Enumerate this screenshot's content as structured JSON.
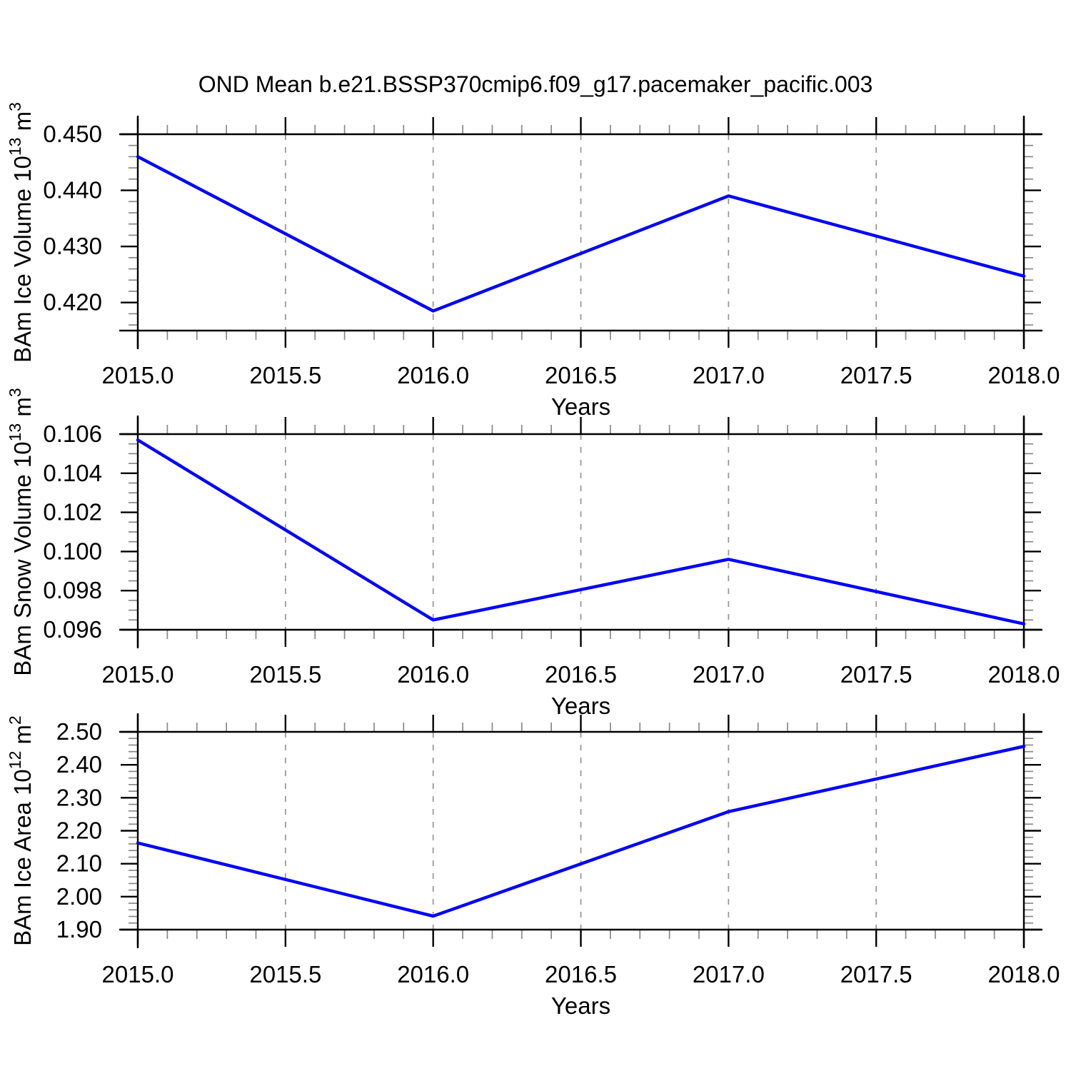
{
  "title": "OND Mean b.e21.BSSP370cmip6.f09_g17.pacemaker_pacific.003",
  "colors": {
    "line": "#0000ff",
    "axis": "#000000",
    "major_tick": "#000000",
    "minor_tick": "#888888",
    "grid": "#999999",
    "text": "#000000"
  },
  "chart_data": [
    {
      "id": "ice-volume",
      "type": "line",
      "x": [
        2015.0,
        2016.0,
        2017.0,
        2018.0
      ],
      "y": [
        0.446,
        0.4185,
        0.439,
        0.4247
      ],
      "xlabel": "Years",
      "ylabel_parts": [
        {
          "t": "BAm Ice Volume 10"
        },
        {
          "sup": "13"
        },
        {
          "t": " m"
        },
        {
          "sup": "3"
        }
      ],
      "xlim": [
        2015.0,
        2018.0
      ],
      "ylim": [
        0.415,
        0.45
      ],
      "xticks": {
        "values": [
          2015.0,
          2015.5,
          2016.0,
          2016.5,
          2017.0,
          2017.5,
          2018.0
        ],
        "labels": [
          "2015.0",
          "2015.5",
          "2016.0",
          "2016.5",
          "2017.0",
          "2017.5",
          "2018.0"
        ]
      },
      "yticks": {
        "values": [
          0.42,
          0.43,
          0.44,
          0.45
        ],
        "labels": [
          "0.420",
          "0.430",
          "0.440",
          "0.450"
        ]
      },
      "minor_x_step": 0.1,
      "minor_y_step": 0.002,
      "grid_x": [
        2015.5,
        2016.0,
        2016.5,
        2017.0,
        2017.5
      ],
      "grid_on": true,
      "legend": "none"
    },
    {
      "id": "snow-volume",
      "type": "line",
      "x": [
        2015.0,
        2016.0,
        2017.0,
        2018.0
      ],
      "y": [
        0.1057,
        0.0965,
        0.0996,
        0.0963
      ],
      "xlabel": "Years",
      "ylabel_parts": [
        {
          "t": "BAm Snow Volume 10"
        },
        {
          "sup": "13"
        },
        {
          "t": " m"
        },
        {
          "sup": "3"
        }
      ],
      "xlim": [
        2015.0,
        2018.0
      ],
      "ylim": [
        0.096,
        0.106
      ],
      "xticks": {
        "values": [
          2015.0,
          2015.5,
          2016.0,
          2016.5,
          2017.0,
          2017.5,
          2018.0
        ],
        "labels": [
          "2015.0",
          "2015.5",
          "2016.0",
          "2016.5",
          "2017.0",
          "2017.5",
          "2018.0"
        ]
      },
      "yticks": {
        "values": [
          0.096,
          0.098,
          0.1,
          0.102,
          0.104,
          0.106
        ],
        "labels": [
          "0.096",
          "0.098",
          "0.100",
          "0.102",
          "0.104",
          "0.106"
        ]
      },
      "minor_x_step": 0.1,
      "minor_y_step": 0.0005,
      "grid_x": [
        2015.5,
        2016.0,
        2016.5,
        2017.0,
        2017.5
      ],
      "grid_on": true,
      "legend": "none"
    },
    {
      "id": "ice-area",
      "type": "line",
      "x": [
        2015.0,
        2016.0,
        2017.0,
        2018.0
      ],
      "y": [
        2.163,
        1.941,
        2.258,
        2.456
      ],
      "xlabel": "Years",
      "ylabel_parts": [
        {
          "t": "BAm Ice Area 10"
        },
        {
          "sup": "12"
        },
        {
          "t": " m"
        },
        {
          "sup": "2"
        }
      ],
      "xlim": [
        2015.0,
        2018.0
      ],
      "ylim": [
        1.9,
        2.5
      ],
      "xticks": {
        "values": [
          2015.0,
          2015.5,
          2016.0,
          2016.5,
          2017.0,
          2017.5,
          2018.0
        ],
        "labels": [
          "2015.0",
          "2015.5",
          "2016.0",
          "2016.5",
          "2017.0",
          "2017.5",
          "2018.0"
        ]
      },
      "yticks": {
        "values": [
          1.9,
          2.0,
          2.1,
          2.2,
          2.3,
          2.4,
          2.5
        ],
        "labels": [
          "1.90",
          "2.00",
          "2.10",
          "2.20",
          "2.30",
          "2.40",
          "2.50"
        ]
      },
      "minor_x_step": 0.1,
      "minor_y_step": 0.02,
      "grid_x": [
        2015.5,
        2016.0,
        2016.5,
        2017.0,
        2017.5
      ],
      "grid_on": true,
      "legend": "none"
    }
  ]
}
